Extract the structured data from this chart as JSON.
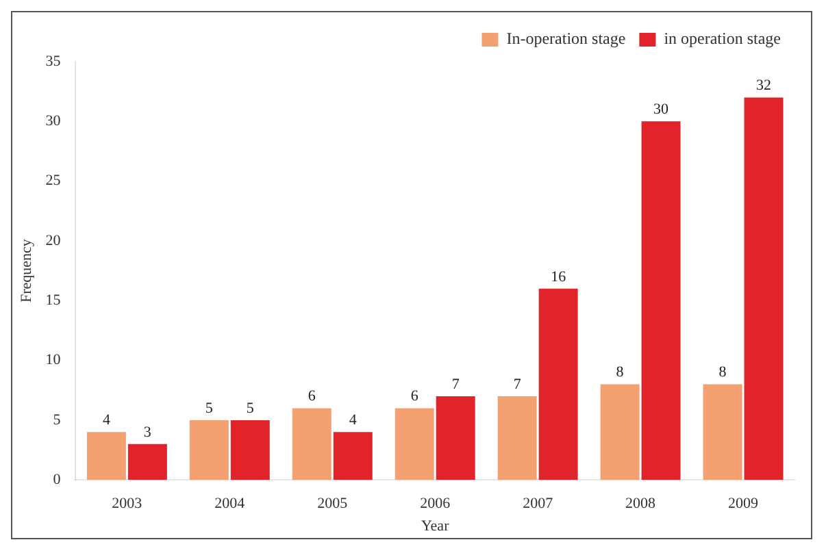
{
  "chart_data": {
    "type": "bar",
    "xlabel": "Year",
    "ylabel": "Frequency",
    "categories": [
      "2003",
      "2004",
      "2005",
      "2006",
      "2007",
      "2008",
      "2009"
    ],
    "series": [
      {
        "name": "In-operation stage",
        "color": "#f4a070",
        "values": [
          4,
          5,
          6,
          6,
          7,
          8,
          8
        ]
      },
      {
        "name": "in operation stage",
        "color": "#e0242a",
        "values": [
          3,
          5,
          4,
          7,
          16,
          30,
          32
        ]
      }
    ],
    "ylim": [
      0,
      35
    ],
    "yticks": [
      0,
      5,
      10,
      15,
      20,
      25,
      30,
      35
    ],
    "grid": false,
    "legend": "top right",
    "data_labels": true
  }
}
